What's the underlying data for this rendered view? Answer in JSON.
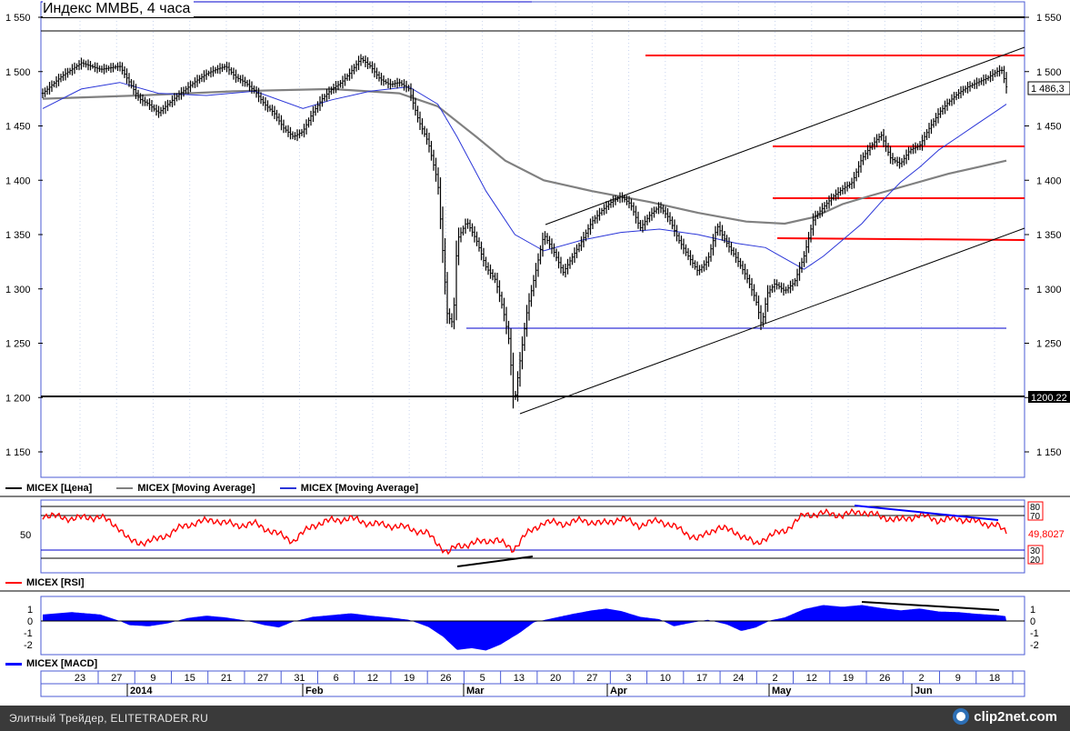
{
  "title": "Индекс ММВБ, 4 часа",
  "colors": {
    "price": "#000000",
    "ma_long": "#808080",
    "ma_short": "#2a35d8",
    "rsi": "#ff0000",
    "macd": "#0000ff",
    "levels": "#ff0000",
    "support": "#0000cc",
    "grid": "#c8d4ee"
  },
  "price_panel": {
    "ticks": [
      "1 550",
      "1 500",
      "1 450",
      "1 400",
      "1 350",
      "1 300",
      "1 250",
      "1 200",
      "1 150"
    ],
    "last_value_label": "1 486,3",
    "level_label": "1200.22",
    "legend": [
      {
        "label": "MICEX [Цена]",
        "color": "#000000"
      },
      {
        "label": "MICEX [Moving Average]",
        "color": "#808080"
      },
      {
        "label": "MICEX [Moving Average]",
        "color": "#2a35d8"
      }
    ]
  },
  "rsi_panel": {
    "ticks": [
      "50"
    ],
    "right_labels": [
      "80",
      "70",
      "30",
      "20"
    ],
    "value_label": "49,8027",
    "legend": "MICEX [RSI]"
  },
  "macd_panel": {
    "ticks": [
      "1",
      "0",
      "-1",
      "-2"
    ],
    "legend": "MICEX [MACD]"
  },
  "x_axis": {
    "day_labels": [
      "23",
      "27",
      "9",
      "15",
      "21",
      "27",
      "31",
      "6",
      "12",
      "19",
      "26",
      "5",
      "13",
      "20",
      "27",
      "3",
      "10",
      "17",
      "24",
      "2",
      "12",
      "19",
      "26",
      "2",
      "9",
      "18"
    ],
    "month_labels": [
      "2014",
      "Feb",
      "Mar",
      "Apr",
      "May",
      "Jun"
    ]
  },
  "footer": {
    "credit": "Элитный Трейдер, ELITETRADER.RU",
    "logo": "clip2net.com"
  },
  "chart_data": [
    {
      "type": "line",
      "title": "Индекс ММВБ, 4 часа",
      "ylim": [
        1125,
        1560
      ],
      "x_range": [
        0,
        100
      ],
      "series": [
        {
          "name": "MICEX [Цена]",
          "points": [
            [
              0,
              1480
            ],
            [
              2,
              1496
            ],
            [
              4,
              1508
            ],
            [
              6,
              1502
            ],
            [
              8,
              1505
            ],
            [
              9,
              1490
            ],
            [
              10,
              1475
            ],
            [
              11,
              1470
            ],
            [
              12,
              1462
            ],
            [
              13,
              1470
            ],
            [
              14,
              1478
            ],
            [
              15,
              1485
            ],
            [
              16,
              1492
            ],
            [
              17,
              1498
            ],
            [
              18,
              1502
            ],
            [
              19,
              1505
            ],
            [
              20,
              1495
            ],
            [
              21,
              1490
            ],
            [
              22,
              1482
            ],
            [
              23,
              1470
            ],
            [
              24,
              1462
            ],
            [
              25,
              1448
            ],
            [
              26,
              1440
            ],
            [
              27,
              1445
            ],
            [
              28,
              1462
            ],
            [
              29,
              1475
            ],
            [
              30,
              1484
            ],
            [
              31,
              1490
            ],
            [
              32,
              1500
            ],
            [
              33,
              1512
            ],
            [
              34,
              1505
            ],
            [
              35,
              1493
            ],
            [
              36,
              1488
            ],
            [
              37,
              1490
            ],
            [
              38,
              1484
            ],
            [
              39,
              1455
            ],
            [
              40,
              1435
            ],
            [
              41,
              1398
            ],
            [
              42,
              1275
            ],
            [
              42.6,
              1268
            ],
            [
              43,
              1345
            ],
            [
              44,
              1362
            ],
            [
              45,
              1345
            ],
            [
              46,
              1320
            ],
            [
              47,
              1308
            ],
            [
              47.8,
              1280
            ],
            [
              48.4,
              1252
            ],
            [
              48.9,
              1192
            ],
            [
              49.5,
              1232
            ],
            [
              50.3,
              1282
            ],
            [
              51.2,
              1318
            ],
            [
              52,
              1350
            ],
            [
              53,
              1335
            ],
            [
              54,
              1315
            ],
            [
              55,
              1330
            ],
            [
              56,
              1345
            ],
            [
              57,
              1362
            ],
            [
              58,
              1372
            ],
            [
              59,
              1380
            ],
            [
              60,
              1385
            ],
            [
              61,
              1378
            ],
            [
              62,
              1356
            ],
            [
              63,
              1368
            ],
            [
              64,
              1376
            ],
            [
              65,
              1365
            ],
            [
              66,
              1345
            ],
            [
              67,
              1330
            ],
            [
              68,
              1316
            ],
            [
              69,
              1326
            ],
            [
              70,
              1358
            ],
            [
              71,
              1342
            ],
            [
              72,
              1328
            ],
            [
              73,
              1312
            ],
            [
              74,
              1290
            ],
            [
              74.6,
              1266
            ],
            [
              75.2,
              1296
            ],
            [
              76,
              1305
            ],
            [
              77,
              1298
            ],
            [
              78,
              1306
            ],
            [
              79,
              1330
            ],
            [
              80,
              1365
            ],
            [
              81,
              1375
            ],
            [
              82,
              1385
            ],
            [
              83,
              1392
            ],
            [
              84,
              1398
            ],
            [
              85,
              1420
            ],
            [
              86,
              1432
            ],
            [
              87,
              1442
            ],
            [
              88,
              1420
            ],
            [
              89,
              1415
            ],
            [
              90,
              1428
            ],
            [
              91,
              1432
            ],
            [
              92,
              1448
            ],
            [
              93,
              1462
            ],
            [
              94,
              1472
            ],
            [
              95,
              1480
            ],
            [
              96,
              1486
            ],
            [
              97,
              1490
            ],
            [
              98,
              1494
            ],
            [
              99,
              1500
            ],
            [
              99.5,
              1502
            ],
            [
              100,
              1486
            ]
          ]
        },
        {
          "name": "MICEX [Moving Average]",
          "points": [
            [
              0,
              1475
            ],
            [
              10,
              1478
            ],
            [
              20,
              1482
            ],
            [
              30,
              1484
            ],
            [
              37,
              1480
            ],
            [
              41,
              1468
            ],
            [
              45,
              1440
            ],
            [
              48,
              1418
            ],
            [
              52,
              1400
            ],
            [
              57,
              1390
            ],
            [
              63,
              1380
            ],
            [
              68,
              1370
            ],
            [
              73,
              1362
            ],
            [
              77,
              1360
            ],
            [
              80,
              1366
            ],
            [
              83,
              1378
            ],
            [
              86,
              1386
            ],
            [
              90,
              1396
            ],
            [
              94,
              1406
            ],
            [
              97,
              1412
            ],
            [
              100,
              1418
            ]
          ]
        },
        {
          "name": "MICEX [Moving Average]",
          "points": [
            [
              0,
              1466
            ],
            [
              4,
              1484
            ],
            [
              8,
              1490
            ],
            [
              12,
              1480
            ],
            [
              17,
              1478
            ],
            [
              22,
              1482
            ],
            [
              27,
              1466
            ],
            [
              30,
              1474
            ],
            [
              34,
              1482
            ],
            [
              38,
              1486
            ],
            [
              41,
              1470
            ],
            [
              43,
              1440
            ],
            [
              46,
              1390
            ],
            [
              49,
              1350
            ],
            [
              52,
              1335
            ],
            [
              56,
              1345
            ],
            [
              60,
              1352
            ],
            [
              64,
              1355
            ],
            [
              68,
              1350
            ],
            [
              72,
              1342
            ],
            [
              75,
              1338
            ],
            [
              77,
              1328
            ],
            [
              79,
              1318
            ],
            [
              81,
              1330
            ],
            [
              83,
              1345
            ],
            [
              85,
              1360
            ],
            [
              87,
              1380
            ],
            [
              89,
              1398
            ],
            [
              91,
              1412
            ],
            [
              93,
              1428
            ],
            [
              95,
              1440
            ],
            [
              97,
              1452
            ],
            [
              99,
              1464
            ],
            [
              100,
              1470
            ]
          ]
        }
      ]
    },
    {
      "type": "line",
      "ylim": [
        0,
        100
      ],
      "series": [
        {
          "name": "MICEX [RSI]",
          "points": [
            [
              0,
              70
            ],
            [
              3,
              66
            ],
            [
              6,
              68
            ],
            [
              8,
              55
            ],
            [
              9,
              40
            ],
            [
              10,
              38
            ],
            [
              12,
              42
            ],
            [
              14,
              54
            ],
            [
              16,
              62
            ],
            [
              18,
              64
            ],
            [
              20,
              58
            ],
            [
              22,
              60
            ],
            [
              24,
              50
            ],
            [
              26,
              40
            ],
            [
              28,
              58
            ],
            [
              30,
              64
            ],
            [
              32,
              66
            ],
            [
              34,
              60
            ],
            [
              36,
              58
            ],
            [
              38,
              55
            ],
            [
              40,
              48
            ],
            [
              42,
              26
            ],
            [
              43,
              34
            ],
            [
              45,
              38
            ],
            [
              47,
              42
            ],
            [
              48.8,
              30
            ],
            [
              50,
              46
            ],
            [
              52,
              62
            ],
            [
              54,
              60
            ],
            [
              56,
              64
            ],
            [
              58,
              60
            ],
            [
              60,
              66
            ],
            [
              62,
              58
            ],
            [
              64,
              64
            ],
            [
              66,
              54
            ],
            [
              68,
              42
            ],
            [
              70,
              56
            ],
            [
              72,
              50
            ],
            [
              74,
              36
            ],
            [
              75,
              44
            ],
            [
              77,
              52
            ],
            [
              79,
              70
            ],
            [
              81,
              72
            ],
            [
              83,
              70
            ],
            [
              85,
              74
            ],
            [
              87,
              68
            ],
            [
              89,
              64
            ],
            [
              91,
              70
            ],
            [
              93,
              64
            ],
            [
              95,
              66
            ],
            [
              97,
              62
            ],
            [
              99,
              58
            ],
            [
              100,
              49.8
            ]
          ]
        }
      ]
    },
    {
      "type": "area",
      "ylim": [
        -2.6,
        1.6
      ],
      "series": [
        {
          "name": "MICEX [MACD]",
          "points": [
            [
              0,
              0.55
            ],
            [
              3,
              0.75
            ],
            [
              6,
              0.55
            ],
            [
              8,
              0
            ],
            [
              9,
              -0.35
            ],
            [
              11,
              -0.45
            ],
            [
              13,
              -0.2
            ],
            [
              15,
              0.25
            ],
            [
              17,
              0.45
            ],
            [
              19,
              0.3
            ],
            [
              21,
              0.05
            ],
            [
              23,
              -0.35
            ],
            [
              24.5,
              -0.55
            ],
            [
              26,
              -0.05
            ],
            [
              28,
              0.35
            ],
            [
              30,
              0.5
            ],
            [
              32,
              0.65
            ],
            [
              34,
              0.45
            ],
            [
              36,
              0.3
            ],
            [
              38,
              0.1
            ],
            [
              40,
              -0.5
            ],
            [
              41.5,
              -1.3
            ],
            [
              43,
              -2.45
            ],
            [
              44.5,
              -2.3
            ],
            [
              46,
              -2.5
            ],
            [
              47.5,
              -2.0
            ],
            [
              49.5,
              -1.0
            ],
            [
              51,
              -0.1
            ],
            [
              53,
              0.25
            ],
            [
              55,
              0.6
            ],
            [
              57,
              0.9
            ],
            [
              58.5,
              1.05
            ],
            [
              60,
              0.85
            ],
            [
              62,
              0.35
            ],
            [
              64,
              0.15
            ],
            [
              65.5,
              -0.45
            ],
            [
              67,
              -0.2
            ],
            [
              69,
              0.1
            ],
            [
              71,
              -0.3
            ],
            [
              72.5,
              -0.85
            ],
            [
              74,
              -0.55
            ],
            [
              75.5,
              0.05
            ],
            [
              77,
              0.3
            ],
            [
              79,
              1.0
            ],
            [
              81,
              1.35
            ],
            [
              83,
              1.2
            ],
            [
              85,
              1.35
            ],
            [
              87,
              1.1
            ],
            [
              89,
              0.9
            ],
            [
              91,
              1.05
            ],
            [
              93,
              0.8
            ],
            [
              95,
              0.75
            ],
            [
              97,
              0.6
            ],
            [
              99,
              0.5
            ],
            [
              100,
              0.4
            ]
          ]
        }
      ]
    }
  ]
}
